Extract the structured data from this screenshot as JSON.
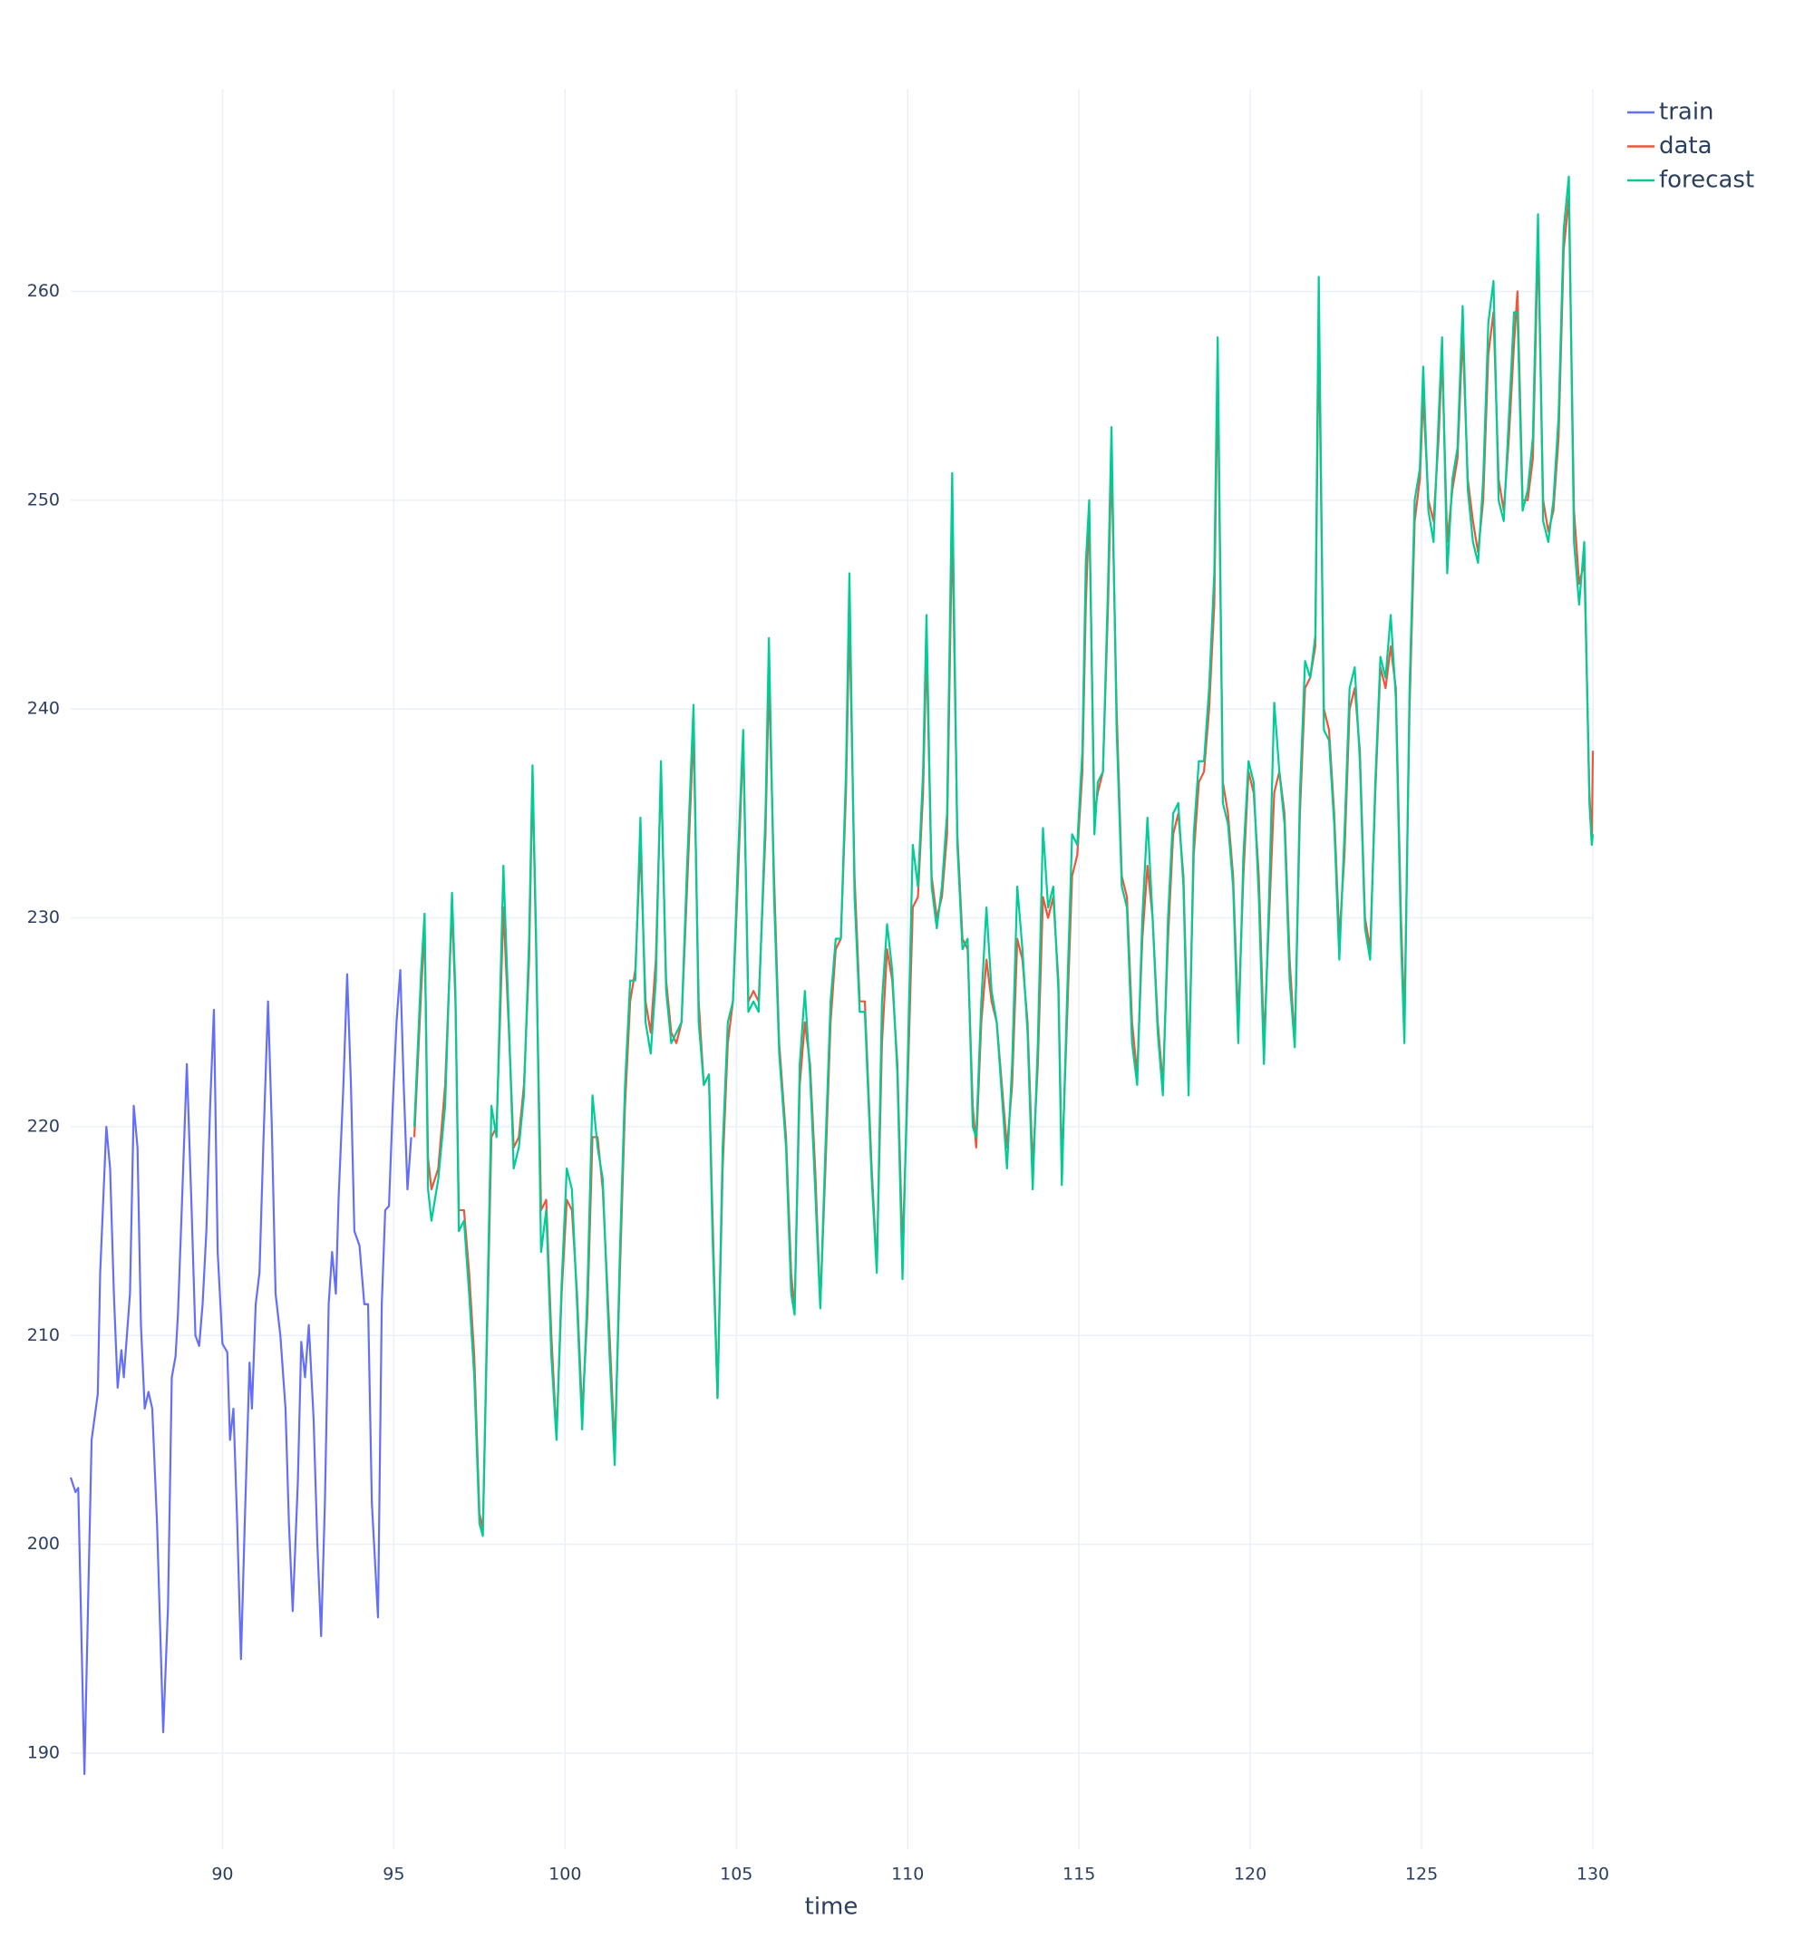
{
  "chart_data": {
    "type": "line",
    "x_label": "time",
    "grid": true,
    "legend": "top-right",
    "xlim": [
      85.57,
      130
    ],
    "xticks": [
      90,
      95,
      100,
      105,
      110,
      115,
      120,
      125,
      130
    ],
    "ylim": [
      185.4,
      269.7
    ],
    "yticks": [
      190,
      200,
      210,
      220,
      230,
      240,
      250,
      260
    ],
    "series": [
      {
        "name": "train",
        "color": "#636efa",
        "x": [
          85.57,
          85.71,
          85.79,
          85.97,
          86.18,
          86.36,
          86.43,
          86.61,
          86.72,
          86.83,
          86.94,
          87.05,
          87.12,
          87.3,
          87.41,
          87.52,
          87.62,
          87.73,
          87.84,
          87.95,
          88.09,
          88.27,
          88.41,
          88.52,
          88.63,
          88.7,
          88.81,
          88.96,
          89.1,
          89.21,
          89.32,
          89.42,
          89.53,
          89.64,
          89.75,
          89.86,
          90,
          90.14,
          90.22,
          90.32,
          90.43,
          90.54,
          90.65,
          90.79,
          90.86,
          90.97,
          91.08,
          91.19,
          91.33,
          91.44,
          91.55,
          91.69,
          91.84,
          91.94,
          92.05,
          92.2,
          92.3,
          92.41,
          92.52,
          92.66,
          92.77,
          92.88,
          92.99,
          93.1,
          93.2,
          93.31,
          93.39,
          93.53,
          93.64,
          93.75,
          93.85,
          94,
          94.14,
          94.25,
          94.36,
          94.54,
          94.65,
          94.75,
          94.86,
          94.97,
          95.08,
          95.19,
          95.29,
          95.4,
          95.51
        ],
        "values": [
          203.2,
          202.5,
          202.7,
          189,
          205,
          207.2,
          213,
          220,
          218,
          212,
          207.5,
          209.3,
          208,
          212,
          221,
          219,
          210.5,
          206.5,
          207.3,
          206.5,
          201,
          191,
          197,
          208,
          209,
          211,
          216,
          223,
          216,
          210,
          209.5,
          211.5,
          215,
          221,
          225.6,
          214,
          209.6,
          209.2,
          205,
          206.5,
          201,
          194.5,
          201,
          208.7,
          206.5,
          211.5,
          213,
          219,
          226,
          220,
          212,
          210,
          206.5,
          201,
          196.8,
          203,
          209.7,
          208,
          210.5,
          206,
          200,
          195.6,
          202,
          211.5,
          214,
          212,
          216.6,
          222,
          227.3,
          222,
          215,
          214.3,
          211.5,
          211.5,
          202,
          196.5,
          211.5,
          216,
          216.2,
          221,
          225,
          227.5,
          222,
          217,
          219.5
        ]
      },
      {
        "name": "data",
        "color": "#EF553B",
        "x": [
          95.6,
          95.8,
          95.9,
          96.0,
          96.1,
          96.3,
          96.5,
          96.7,
          96.8,
          96.9,
          97.05,
          97.2,
          97.35,
          97.5,
          97.6,
          97.75,
          97.85,
          98.0,
          98.1,
          98.2,
          98.35,
          98.5,
          98.65,
          98.8,
          98.95,
          99.05,
          99.15,
          99.3,
          99.45,
          99.6,
          99.75,
          99.9,
          100.05,
          100.2,
          100.35,
          100.5,
          100.65,
          100.8,
          100.95,
          101.1,
          101.3,
          101.45,
          101.6,
          101.75,
          101.9,
          102.05,
          102.2,
          102.35,
          102.5,
          102.65,
          102.8,
          102.95,
          103.1,
          103.25,
          103.4,
          103.55,
          103.75,
          103.9,
          104.05,
          104.2,
          104.3,
          104.45,
          104.6,
          104.75,
          104.9,
          105.05,
          105.2,
          105.35,
          105.5,
          105.65,
          105.85,
          105.95,
          106.1,
          106.25,
          106.45,
          106.6,
          106.7,
          106.85,
          107.0,
          107.15,
          107.3,
          107.45,
          107.6,
          107.75,
          107.9,
          108.05,
          108.2,
          108.3,
          108.45,
          108.6,
          108.75,
          108.95,
          109.1,
          109.25,
          109.4,
          109.55,
          109.7,
          109.85,
          110.0,
          110.15,
          110.3,
          110.45,
          110.55,
          110.7,
          110.85,
          111.0,
          111.15,
          111.3,
          111.45,
          111.6,
          111.75,
          111.9,
          112.0,
          112.15,
          112.3,
          112.45,
          112.6,
          112.75,
          112.9,
          113.05,
          113.2,
          113.35,
          113.5,
          113.65,
          113.8,
          113.95,
          114.1,
          114.25,
          114.4,
          114.5,
          114.65,
          114.8,
          114.95,
          115.1,
          115.2,
          115.3,
          115.45,
          115.55,
          115.7,
          115.85,
          115.95,
          116.1,
          116.25,
          116.4,
          116.55,
          116.7,
          116.85,
          117.0,
          117.15,
          117.3,
          117.45,
          117.6,
          117.75,
          117.9,
          118.05,
          118.2,
          118.35,
          118.5,
          118.65,
          118.8,
          118.95,
          119.05,
          119.2,
          119.35,
          119.5,
          119.65,
          119.8,
          119.95,
          120.1,
          120.25,
          120.4,
          120.55,
          120.7,
          120.85,
          121.0,
          121.15,
          121.3,
          121.45,
          121.6,
          121.75,
          121.9,
          122.0,
          122.15,
          122.3,
          122.45,
          122.6,
          122.75,
          122.9,
          123.05,
          123.2,
          123.35,
          123.5,
          123.65,
          123.8,
          123.95,
          124.1,
          124.25,
          124.4,
          124.5,
          124.65,
          124.8,
          124.95,
          125.05,
          125.2,
          125.35,
          125.5,
          125.6,
          125.75,
          125.9,
          126.05,
          126.2,
          126.35,
          126.5,
          126.65,
          126.8,
          126.95,
          127.1,
          127.25,
          127.4,
          127.55,
          127.7,
          127.8,
          127.95,
          128.1,
          128.25,
          128.4,
          128.55,
          128.7,
          128.85,
          129.0,
          129.15,
          129.3,
          129.45,
          129.6,
          129.75,
          129.9,
          129.97,
          130.0
        ],
        "values": [
          219.5,
          226.5,
          229.5,
          218.5,
          217,
          218,
          222,
          230.5,
          226,
          216,
          216,
          213,
          209,
          201.5,
          200.7,
          212,
          219.5,
          220,
          225,
          230.5,
          225,
          219,
          219.5,
          222,
          228,
          236.8,
          229,
          216,
          216.5,
          210,
          205.2,
          212,
          216.5,
          216,
          212,
          206.2,
          211,
          219.5,
          219.5,
          217,
          210,
          204.5,
          213,
          221,
          226,
          227.5,
          233.5,
          226,
          224.5,
          228,
          237,
          227,
          224.5,
          224,
          225,
          231,
          239,
          226,
          222,
          222.5,
          216,
          207,
          218,
          224,
          226,
          232,
          238.5,
          226,
          226.5,
          226,
          234,
          241.5,
          232,
          224,
          219.5,
          213,
          211.2,
          222,
          225,
          223,
          218,
          211.5,
          218,
          225,
          228.5,
          229,
          236,
          244.5,
          232,
          226,
          226,
          218,
          213.3,
          224,
          228.5,
          227,
          223,
          214,
          222,
          230.5,
          231,
          236,
          243,
          232,
          230,
          231,
          234,
          249,
          234,
          229,
          228.5,
          221,
          219,
          225,
          228,
          226,
          225,
          222,
          219,
          222,
          229,
          228,
          225,
          218,
          223,
          231,
          230,
          231,
          227,
          218,
          225,
          232,
          233,
          237,
          245,
          249.5,
          235,
          236,
          237,
          245,
          252,
          240,
          232,
          231,
          225,
          222.5,
          229,
          232.5,
          230,
          225,
          222,
          229,
          234,
          235,
          232,
          222.5,
          233,
          236.5,
          237,
          240,
          245,
          256,
          236.5,
          235,
          232,
          225,
          232,
          237,
          236,
          232,
          224,
          230,
          236,
          237,
          235,
          228,
          224,
          235,
          241,
          241.5,
          243,
          258.5,
          240,
          239,
          235,
          229,
          233,
          240,
          241,
          238,
          230,
          228.5,
          236,
          242,
          241,
          243,
          241,
          230,
          225,
          240,
          249,
          251,
          255,
          250,
          249,
          253,
          257,
          248,
          250.5,
          252,
          258,
          251,
          249,
          247.5,
          250,
          257,
          259,
          251,
          249.5,
          253,
          257.5,
          260,
          250,
          250,
          252,
          262.5,
          250,
          248.5,
          249.5,
          253,
          262,
          264.5,
          249.5,
          246,
          247,
          236,
          233.5,
          238
        ]
      },
      {
        "name": "forecast",
        "color": "#00cc96",
        "x": [
          95.6,
          95.8,
          95.9,
          96.0,
          96.1,
          96.3,
          96.5,
          96.7,
          96.8,
          96.9,
          97.05,
          97.2,
          97.35,
          97.5,
          97.6,
          97.75,
          97.85,
          98.0,
          98.1,
          98.2,
          98.35,
          98.5,
          98.65,
          98.8,
          98.95,
          99.05,
          99.15,
          99.3,
          99.45,
          99.6,
          99.75,
          99.9,
          100.05,
          100.2,
          100.35,
          100.5,
          100.65,
          100.8,
          100.95,
          101.1,
          101.3,
          101.45,
          101.6,
          101.75,
          101.9,
          102.05,
          102.2,
          102.35,
          102.5,
          102.65,
          102.8,
          102.95,
          103.1,
          103.25,
          103.4,
          103.55,
          103.75,
          103.9,
          104.05,
          104.2,
          104.3,
          104.45,
          104.6,
          104.75,
          104.9,
          105.05,
          105.2,
          105.35,
          105.5,
          105.65,
          105.85,
          105.95,
          106.1,
          106.25,
          106.45,
          106.6,
          106.7,
          106.85,
          107.0,
          107.15,
          107.3,
          107.45,
          107.6,
          107.75,
          107.9,
          108.05,
          108.2,
          108.3,
          108.45,
          108.6,
          108.75,
          108.95,
          109.1,
          109.25,
          109.4,
          109.55,
          109.7,
          109.85,
          110.0,
          110.15,
          110.3,
          110.45,
          110.55,
          110.7,
          110.85,
          111.0,
          111.15,
          111.3,
          111.45,
          111.6,
          111.75,
          111.9,
          112.0,
          112.15,
          112.3,
          112.45,
          112.6,
          112.75,
          112.9,
          113.05,
          113.2,
          113.35,
          113.5,
          113.65,
          113.8,
          113.95,
          114.1,
          114.25,
          114.4,
          114.5,
          114.65,
          114.8,
          114.95,
          115.1,
          115.2,
          115.3,
          115.45,
          115.55,
          115.7,
          115.85,
          115.95,
          116.1,
          116.25,
          116.4,
          116.55,
          116.7,
          116.85,
          117.0,
          117.15,
          117.3,
          117.45,
          117.6,
          117.75,
          117.9,
          118.05,
          118.2,
          118.35,
          118.5,
          118.65,
          118.8,
          118.95,
          119.05,
          119.2,
          119.35,
          119.5,
          119.65,
          119.8,
          119.95,
          120.1,
          120.25,
          120.4,
          120.55,
          120.7,
          120.85,
          121.0,
          121.15,
          121.3,
          121.45,
          121.6,
          121.75,
          121.9,
          122.0,
          122.15,
          122.3,
          122.45,
          122.6,
          122.75,
          122.9,
          123.05,
          123.2,
          123.35,
          123.5,
          123.65,
          123.8,
          123.95,
          124.1,
          124.25,
          124.4,
          124.5,
          124.65,
          124.8,
          124.95,
          125.05,
          125.2,
          125.35,
          125.5,
          125.6,
          125.75,
          125.9,
          126.05,
          126.2,
          126.35,
          126.5,
          126.65,
          126.8,
          126.95,
          127.1,
          127.25,
          127.4,
          127.55,
          127.7,
          127.8,
          127.95,
          128.1,
          128.25,
          128.4,
          128.55,
          128.7,
          128.85,
          129.0,
          129.15,
          129.3,
          129.45,
          129.6,
          129.75,
          129.9,
          129.97,
          130.0
        ],
        "values": [
          220,
          227.5,
          230.2,
          217,
          215.5,
          217.5,
          221,
          231.2,
          226.5,
          215,
          215.5,
          212,
          208,
          201,
          200.4,
          213,
          221,
          219.5,
          226,
          232.5,
          225.5,
          218,
          219,
          221.5,
          229,
          237.3,
          229.5,
          214,
          216,
          209,
          205,
          212.5,
          218,
          217,
          211.5,
          205.5,
          212,
          221.5,
          219,
          217.5,
          209,
          203.8,
          214,
          222,
          227,
          227,
          234.8,
          225,
          223.5,
          227,
          237.5,
          226.5,
          224,
          224.5,
          225,
          232,
          240.2,
          225,
          222,
          222.5,
          215,
          207,
          219,
          225,
          226,
          233,
          239,
          225.5,
          226,
          225.5,
          235,
          243.4,
          231,
          223.5,
          219,
          212,
          211,
          223,
          226.5,
          222.5,
          217,
          211.3,
          219,
          226,
          229,
          229,
          237,
          246.5,
          231,
          225.5,
          225.5,
          217.5,
          213,
          226,
          229.7,
          227.5,
          222.5,
          212.7,
          223,
          233.5,
          231.5,
          237,
          244.5,
          231.5,
          229.5,
          231.5,
          235,
          251.3,
          233.5,
          228.5,
          229,
          220,
          219.5,
          226,
          230.5,
          226.5,
          225,
          221.5,
          218,
          223,
          231.5,
          228.5,
          224.5,
          217,
          224,
          234.3,
          230.5,
          231.5,
          226.5,
          217.2,
          226,
          234,
          233.5,
          238,
          247,
          250,
          234,
          236.5,
          237,
          246,
          253.5,
          239,
          231.5,
          230.5,
          224,
          222,
          230,
          234.8,
          230,
          224.5,
          221.5,
          230,
          235,
          235.5,
          231.5,
          221.5,
          234,
          237.5,
          237.5,
          241,
          246.5,
          257.8,
          235.5,
          234.5,
          231.5,
          224,
          233,
          237.5,
          236.5,
          231,
          223,
          231,
          240.3,
          237,
          234.5,
          227,
          223.8,
          236,
          242.3,
          241.5,
          243.5,
          260.7,
          239,
          238.5,
          234.5,
          228,
          234,
          241,
          242,
          237.5,
          229.5,
          228,
          236.5,
          242.5,
          241.5,
          244.5,
          240.5,
          229,
          224,
          241,
          250,
          251.5,
          256.4,
          249.5,
          248,
          254,
          257.8,
          246.5,
          251,
          252.5,
          259.3,
          250.5,
          248,
          247,
          251,
          258.5,
          260.5,
          250,
          249,
          254,
          259,
          259,
          249.5,
          250.5,
          253,
          263.7,
          249,
          248,
          250,
          254,
          263,
          265.5,
          248,
          245,
          248,
          235.5,
          233.5,
          234
        ]
      }
    ]
  }
}
